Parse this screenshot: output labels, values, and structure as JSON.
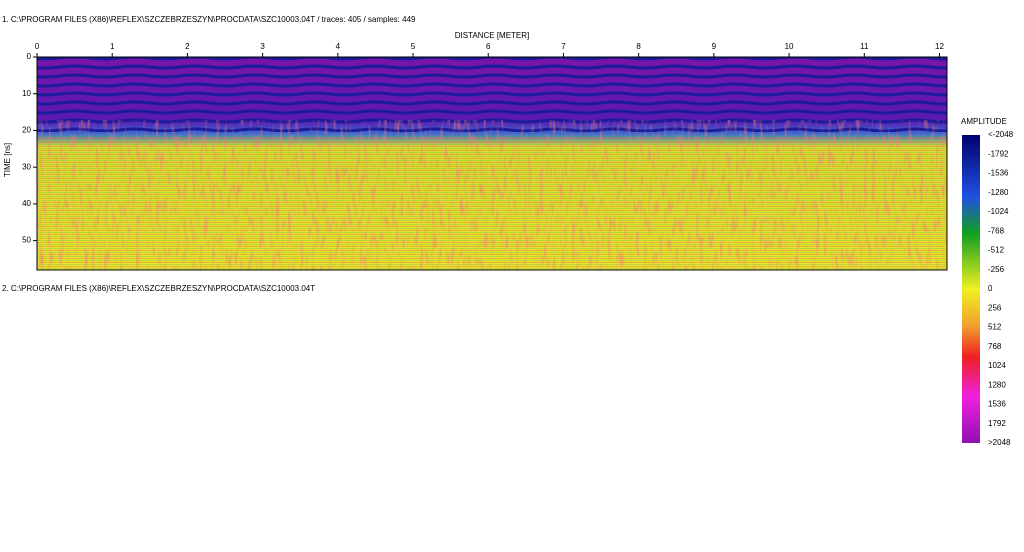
{
  "panel1": {
    "header": "1. C:\\PROGRAM FILES (X86)\\REFLEX\\SZCZEBRZESZYN\\PROCDATA\\SZC10003.04T  / traces: 405 / samples: 449",
    "x_axis": {
      "label": "DISTANCE [METER]",
      "lim": [
        0,
        12.1
      ],
      "ticks": [
        0,
        1,
        2,
        3,
        4,
        5,
        6,
        7,
        8,
        9,
        10,
        11,
        12
      ]
    },
    "y_axis": {
      "label": "TIME [ns]",
      "lim": [
        0,
        58
      ],
      "ticks": [
        0,
        10,
        20,
        30,
        40,
        50
      ]
    }
  },
  "panel2": {
    "header": "2. C:\\PROGRAM FILES (X86)\\REFLEX\\SZCZEBRZESZYN\\PROCDATA\\SZC10003.04T"
  },
  "colorbar": {
    "title": "AMPLITUDE",
    "labels": [
      "<-2048",
      "-1792",
      "-1536",
      "-1280",
      "-1024",
      "-768",
      "-512",
      "-256",
      "0",
      "256",
      "512",
      "768",
      "1024",
      "1280",
      "1536",
      "1792",
      ">2048"
    ]
  }
}
